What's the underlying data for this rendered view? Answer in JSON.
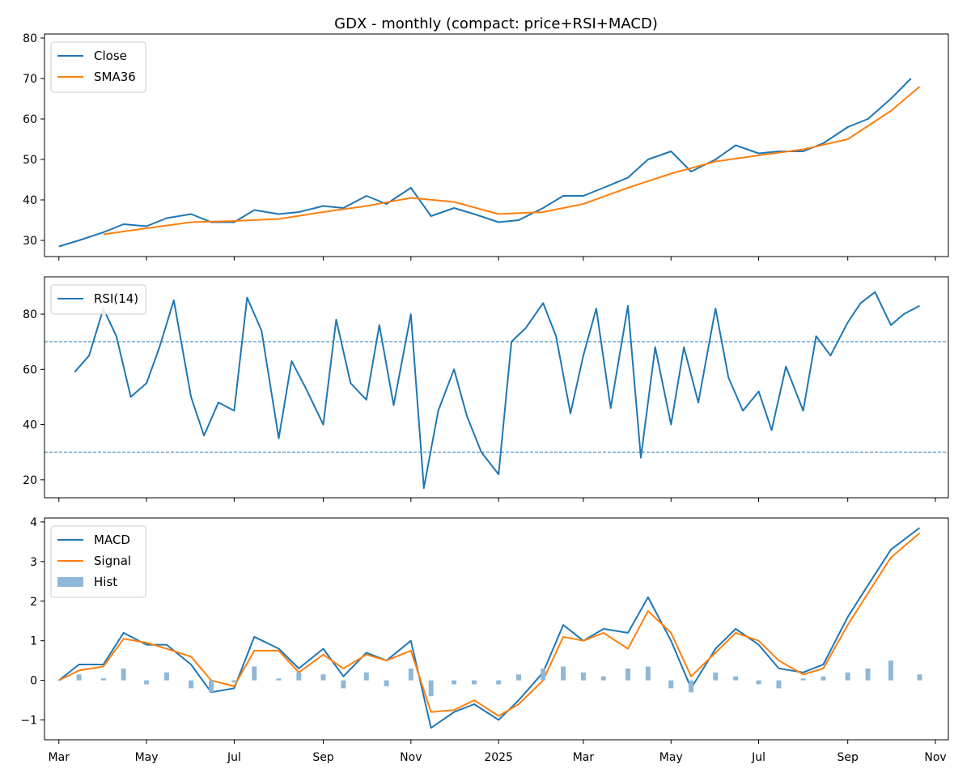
{
  "chart_data": {
    "title": "GDX - monthly (compact: price+RSI+MACD)",
    "x_axis": {
      "type": "date",
      "range": [
        "2024-02-20",
        "2025-11-10"
      ],
      "tick_dates": [
        "2024-03-01",
        "2024-05-01",
        "2024-07-01",
        "2024-09-01",
        "2024-11-01",
        "2025-01-01",
        "2025-03-01",
        "2025-05-01",
        "2025-07-01",
        "2025-09-01",
        "2025-11-01"
      ],
      "tick_labels": [
        "Mar",
        "May",
        "Jul",
        "Sep",
        "Nov",
        "2025",
        "Mar",
        "May",
        "Jul",
        "Sep",
        "Nov"
      ]
    },
    "colors": {
      "blue": "#1f77b4",
      "orange": "#ff7f0e",
      "hist": "#8fb8d8"
    },
    "panels": [
      {
        "id": "price",
        "type": "line",
        "ylim": [
          26,
          81
        ],
        "yticks": [
          30,
          40,
          50,
          60,
          70,
          80
        ],
        "grid": false,
        "legend": "top-left",
        "series": [
          {
            "name": "Close",
            "color": "#1f77b4",
            "x": [
              "2024-03-01",
              "2024-03-15",
              "2024-04-01",
              "2024-04-15",
              "2024-05-01",
              "2024-05-15",
              "2024-06-01",
              "2024-06-15",
              "2024-07-01",
              "2024-07-15",
              "2024-08-01",
              "2024-08-15",
              "2024-09-01",
              "2024-09-15",
              "2024-10-01",
              "2024-10-15",
              "2024-11-01",
              "2024-11-15",
              "2024-12-01",
              "2024-12-15",
              "2025-01-01",
              "2025-01-15",
              "2025-02-01",
              "2025-02-15",
              "2025-03-01",
              "2025-03-15",
              "2025-04-01",
              "2025-04-15",
              "2025-05-01",
              "2025-05-15",
              "2025-06-01",
              "2025-06-15",
              "2025-07-01",
              "2025-07-15",
              "2025-08-01",
              "2025-08-15",
              "2025-09-01",
              "2025-09-15",
              "2025-10-01",
              "2025-10-15"
            ],
            "y": [
              28.5,
              30,
              32,
              34,
              33.5,
              35.5,
              36.5,
              34.5,
              34.5,
              37.5,
              36.5,
              37,
              38.5,
              38,
              41,
              39,
              43,
              36,
              38,
              36.5,
              34.5,
              35,
              38,
              41,
              41,
              43,
              45.5,
              50,
              52,
              47,
              50,
              53.5,
              51.5,
              52,
              52,
              54,
              58,
              60,
              65,
              70
            ]
          },
          {
            "name": "SMA36",
            "color": "#ff7f0e",
            "x": [
              "2024-04-01",
              "2024-05-01",
              "2024-06-01",
              "2024-07-01",
              "2024-08-01",
              "2024-09-01",
              "2024-10-01",
              "2024-11-01",
              "2024-12-01",
              "2025-01-01",
              "2025-02-01",
              "2025-03-01",
              "2025-04-01",
              "2025-05-01",
              "2025-06-01",
              "2025-07-01",
              "2025-08-01",
              "2025-09-01",
              "2025-10-01",
              "2025-10-21"
            ],
            "y": [
              31.5,
              33,
              34.5,
              34.8,
              35.3,
              37,
              38.5,
              40.5,
              39.5,
              36.5,
              37,
              39,
              43,
              46.5,
              49.5,
              51,
              52.5,
              55,
              62,
              68
            ]
          }
        ]
      },
      {
        "id": "rsi",
        "type": "line",
        "ylim": [
          13.5,
          93.5
        ],
        "yticks": [
          20,
          40,
          60,
          80
        ],
        "reference_lines": [
          70,
          30
        ],
        "grid": false,
        "legend": "top-left",
        "series": [
          {
            "name": "RSI(14)",
            "color": "#1f77b4",
            "x": [
              "2024-03-12",
              "2024-03-22",
              "2024-04-01",
              "2024-04-10",
              "2024-04-20",
              "2024-05-01",
              "2024-05-10",
              "2024-05-20",
              "2024-06-01",
              "2024-06-10",
              "2024-06-20",
              "2024-07-01",
              "2024-07-10",
              "2024-07-20",
              "2024-08-01",
              "2024-08-10",
              "2024-08-20",
              "2024-09-01",
              "2024-09-10",
              "2024-09-20",
              "2024-10-01",
              "2024-10-10",
              "2024-10-20",
              "2024-11-01",
              "2024-11-10",
              "2024-11-20",
              "2024-12-01",
              "2024-12-10",
              "2024-12-20",
              "2025-01-01",
              "2025-01-10",
              "2025-01-20",
              "2025-02-01",
              "2025-02-10",
              "2025-02-20",
              "2025-03-01",
              "2025-03-10",
              "2025-03-20",
              "2025-04-01",
              "2025-04-10",
              "2025-04-20",
              "2025-05-01",
              "2025-05-10",
              "2025-05-20",
              "2025-06-01",
              "2025-06-10",
              "2025-06-20",
              "2025-07-01",
              "2025-07-10",
              "2025-07-20",
              "2025-08-01",
              "2025-08-10",
              "2025-08-20",
              "2025-09-01",
              "2025-09-10",
              "2025-09-20",
              "2025-10-01",
              "2025-10-10",
              "2025-10-21"
            ],
            "y": [
              59,
              65,
              82,
              72,
              50,
              55,
              68,
              85,
              50,
              36,
              48,
              45,
              86,
              74,
              35,
              63,
              53,
              40,
              78,
              55,
              49,
              76,
              47,
              80,
              17,
              45,
              60,
              43,
              30,
              22,
              70,
              75,
              84,
              72,
              44,
              65,
              82,
              46,
              83,
              28,
              68,
              40,
              68,
              48,
              82,
              57,
              45,
              52,
              38,
              61,
              45,
              72,
              65,
              77,
              84,
              88,
              76,
              80,
              83
            ]
          }
        ]
      },
      {
        "id": "macd",
        "type": "line+bar",
        "ylim": [
          -1.5,
          4.1
        ],
        "yticks": [
          -1,
          0,
          1,
          2,
          3,
          4
        ],
        "grid": false,
        "legend": "top-left",
        "series": [
          {
            "name": "MACD",
            "color": "#1f77b4",
            "x": [
              "2024-03-01",
              "2024-03-15",
              "2024-04-01",
              "2024-04-15",
              "2024-05-01",
              "2024-05-15",
              "2024-06-01",
              "2024-06-15",
              "2024-07-01",
              "2024-07-15",
              "2024-08-01",
              "2024-08-15",
              "2024-09-01",
              "2024-09-15",
              "2024-10-01",
              "2024-10-15",
              "2024-11-01",
              "2024-11-15",
              "2024-12-01",
              "2024-12-15",
              "2025-01-01",
              "2025-01-15",
              "2025-02-01",
              "2025-02-15",
              "2025-03-01",
              "2025-03-15",
              "2025-04-01",
              "2025-04-15",
              "2025-05-01",
              "2025-05-15",
              "2025-06-01",
              "2025-06-15",
              "2025-07-01",
              "2025-07-15",
              "2025-08-01",
              "2025-08-15",
              "2025-09-01",
              "2025-09-15",
              "2025-10-01",
              "2025-10-21"
            ],
            "y": [
              0,
              0.4,
              0.4,
              1.2,
              0.9,
              0.9,
              0.4,
              -0.3,
              -0.2,
              1.1,
              0.8,
              0.3,
              0.8,
              0.1,
              0.7,
              0.5,
              1,
              -1.2,
              -0.8,
              -0.6,
              -1,
              -0.5,
              0.2,
              1.4,
              1,
              1.3,
              1.2,
              2.1,
              1,
              -0.2,
              0.8,
              1.3,
              0.9,
              0.3,
              0.2,
              0.4,
              1.6,
              2.4,
              3.3,
              3.85
            ]
          },
          {
            "name": "Signal",
            "color": "#ff7f0e",
            "x": [
              "2024-03-01",
              "2024-03-15",
              "2024-04-01",
              "2024-04-15",
              "2024-05-01",
              "2024-05-15",
              "2024-06-01",
              "2024-06-15",
              "2024-07-01",
              "2024-07-15",
              "2024-08-01",
              "2024-08-15",
              "2024-09-01",
              "2024-09-15",
              "2024-10-01",
              "2024-10-15",
              "2024-11-01",
              "2024-11-15",
              "2024-12-01",
              "2024-12-15",
              "2025-01-01",
              "2025-01-15",
              "2025-02-01",
              "2025-02-15",
              "2025-03-01",
              "2025-03-15",
              "2025-04-01",
              "2025-04-15",
              "2025-05-01",
              "2025-05-15",
              "2025-06-01",
              "2025-06-15",
              "2025-07-01",
              "2025-07-15",
              "2025-08-01",
              "2025-08-15",
              "2025-09-01",
              "2025-09-15",
              "2025-10-01",
              "2025-10-21"
            ],
            "y": [
              0,
              0.25,
              0.35,
              1.05,
              0.95,
              0.8,
              0.6,
              0,
              -0.15,
              0.75,
              0.75,
              0.2,
              0.65,
              0.3,
              0.65,
              0.5,
              0.75,
              -0.8,
              -0.75,
              -0.5,
              -0.9,
              -0.6,
              0,
              1.1,
              1,
              1.2,
              0.8,
              1.75,
              1.2,
              0.1,
              0.7,
              1.2,
              1.0,
              0.5,
              0.15,
              0.3,
              1.4,
              2.2,
              3.1,
              3.72
            ]
          },
          {
            "name": "Hist",
            "type": "bar",
            "color": "#8fb8d8",
            "x": [
              "2024-03-01",
              "2024-03-15",
              "2024-04-01",
              "2024-04-15",
              "2024-05-01",
              "2024-05-15",
              "2024-06-01",
              "2024-06-15",
              "2024-07-01",
              "2024-07-15",
              "2024-08-01",
              "2024-08-15",
              "2024-09-01",
              "2024-09-15",
              "2024-10-01",
              "2024-10-15",
              "2024-11-01",
              "2024-11-15",
              "2024-12-01",
              "2024-12-15",
              "2025-01-01",
              "2025-01-15",
              "2025-02-01",
              "2025-02-15",
              "2025-03-01",
              "2025-03-15",
              "2025-04-01",
              "2025-04-15",
              "2025-05-01",
              "2025-05-15",
              "2025-06-01",
              "2025-06-15",
              "2025-07-01",
              "2025-07-15",
              "2025-08-01",
              "2025-08-15",
              "2025-09-01",
              "2025-09-15",
              "2025-10-01",
              "2025-10-21"
            ],
            "y": [
              0,
              0.15,
              0.05,
              0.3,
              -0.1,
              0.2,
              -0.2,
              -0.3,
              -0.05,
              0.35,
              0.05,
              0.2,
              0.15,
              -0.2,
              0.2,
              -0.15,
              0.3,
              -0.4,
              -0.1,
              -0.1,
              -0.1,
              0.15,
              0.3,
              0.35,
              0.2,
              0.1,
              0.3,
              0.35,
              -0.2,
              -0.3,
              0.2,
              0.1,
              -0.1,
              -0.2,
              0.05,
              0.1,
              0.2,
              0.3,
              0.5,
              0.15
            ]
          }
        ]
      }
    ]
  }
}
